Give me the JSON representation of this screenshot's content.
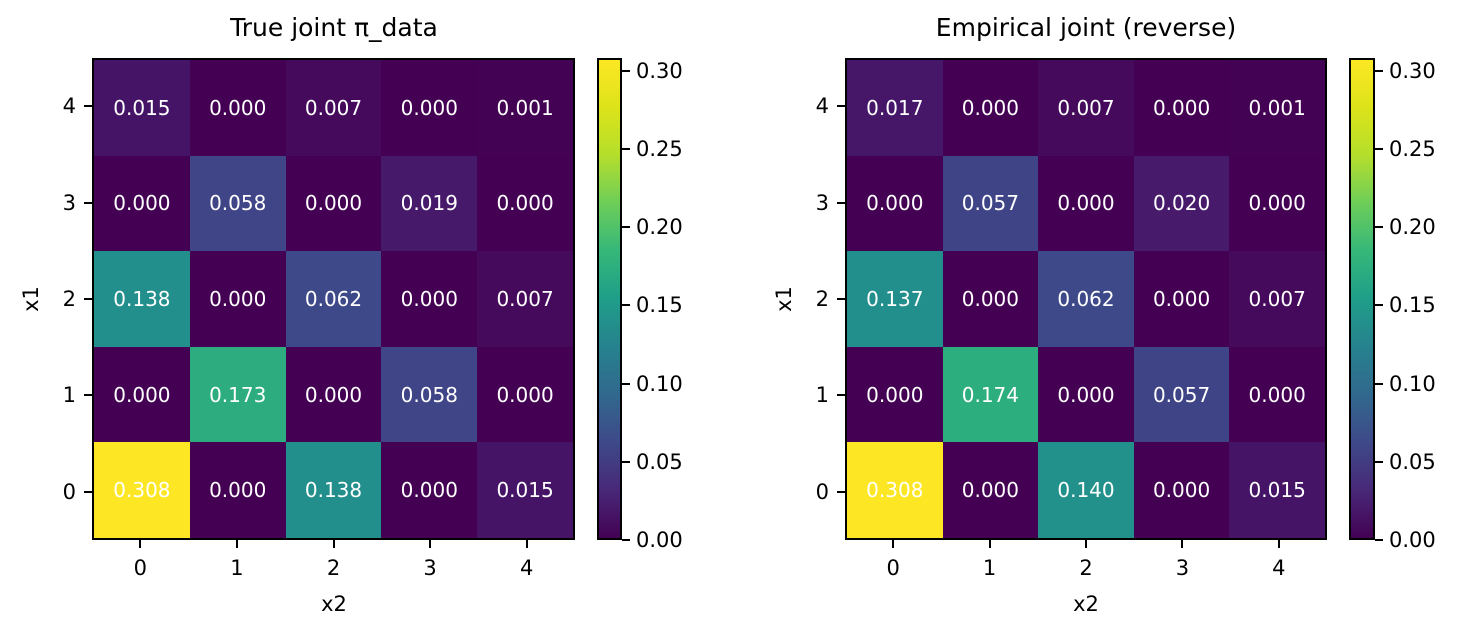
{
  "figure": {
    "background": "#ffffff",
    "annotation_text_color": "#ffffff",
    "axis_color": "#000000",
    "colormap_min_color": "#440154",
    "colormap_max_color": "#fde725"
  },
  "chart_data": [
    {
      "type": "heatmap",
      "title": "True joint π_data",
      "xlabel": "x2",
      "ylabel": "x1",
      "colormap": "viridis",
      "vmin": 0.0,
      "vmax": 0.308,
      "x_tick_labels": [
        "0",
        "1",
        "2",
        "3",
        "4"
      ],
      "y_tick_labels": [
        "4",
        "3",
        "2",
        "1",
        "0"
      ],
      "rows_top_to_bottom": [
        [
          0.015,
          0.0,
          0.007,
          0.0,
          0.001
        ],
        [
          0.0,
          0.058,
          0.0,
          0.019,
          0.0
        ],
        [
          0.138,
          0.0,
          0.062,
          0.0,
          0.007
        ],
        [
          0.0,
          0.173,
          0.0,
          0.058,
          0.0
        ],
        [
          0.308,
          0.0,
          0.138,
          0.0,
          0.015
        ]
      ],
      "cell_labels": [
        [
          "0.015",
          "0.000",
          "0.007",
          "0.000",
          "0.001"
        ],
        [
          "0.000",
          "0.058",
          "0.000",
          "0.019",
          "0.000"
        ],
        [
          "0.138",
          "0.000",
          "0.062",
          "0.000",
          "0.007"
        ],
        [
          "0.000",
          "0.173",
          "0.000",
          "0.058",
          "0.000"
        ],
        [
          "0.308",
          "0.000",
          "0.138",
          "0.000",
          "0.015"
        ]
      ],
      "colorbar": {
        "tick_values": [
          0.0,
          0.05,
          0.1,
          0.15,
          0.2,
          0.25,
          0.3
        ],
        "tick_labels": [
          "0.00",
          "0.05",
          "0.10",
          "0.15",
          "0.20",
          "0.25",
          "0.30"
        ]
      }
    },
    {
      "type": "heatmap",
      "title": "Empirical joint (reverse)",
      "xlabel": "x2",
      "ylabel": "x1",
      "colormap": "viridis",
      "vmin": 0.0,
      "vmax": 0.308,
      "x_tick_labels": [
        "0",
        "1",
        "2",
        "3",
        "4"
      ],
      "y_tick_labels": [
        "4",
        "3",
        "2",
        "1",
        "0"
      ],
      "rows_top_to_bottom": [
        [
          0.017,
          0.0,
          0.007,
          0.0,
          0.001
        ],
        [
          0.0,
          0.057,
          0.0,
          0.02,
          0.0
        ],
        [
          0.137,
          0.0,
          0.062,
          0.0,
          0.007
        ],
        [
          0.0,
          0.174,
          0.0,
          0.057,
          0.0
        ],
        [
          0.308,
          0.0,
          0.14,
          0.0,
          0.015
        ]
      ],
      "cell_labels": [
        [
          "0.017",
          "0.000",
          "0.007",
          "0.000",
          "0.001"
        ],
        [
          "0.000",
          "0.057",
          "0.000",
          "0.020",
          "0.000"
        ],
        [
          "0.137",
          "0.000",
          "0.062",
          "0.000",
          "0.007"
        ],
        [
          "0.000",
          "0.174",
          "0.000",
          "0.057",
          "0.000"
        ],
        [
          "0.308",
          "0.000",
          "0.140",
          "0.000",
          "0.015"
        ]
      ],
      "colorbar": {
        "tick_values": [
          0.0,
          0.05,
          0.1,
          0.15,
          0.2,
          0.25,
          0.3
        ],
        "tick_labels": [
          "0.00",
          "0.05",
          "0.10",
          "0.15",
          "0.20",
          "0.25",
          "0.30"
        ]
      }
    }
  ]
}
